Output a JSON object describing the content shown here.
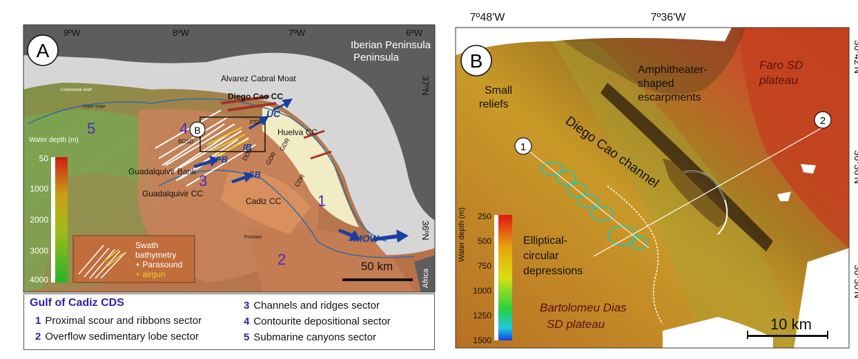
{
  "panel_a": {
    "letter": "A",
    "longitude_labels": [
      "9ºW",
      "8ºW",
      "7ºW",
      "6ºW"
    ],
    "latitude_labels": [
      "37ºN",
      "36ºN"
    ],
    "region_label": "Iberian Peninsula",
    "africa_label": "Africa",
    "features": {
      "alvarez_cabral_moat": "Alvarez Cabral Moat",
      "diego_cao_cc": "Diego Cao CC",
      "huelva_cc": "Huelva CC",
      "guadalquivir_bank": "Guadalquivir Bank",
      "guadalquivir_cc": "Guadalquivir CC",
      "cadiz_cc": "Cadiz CC",
      "continental_shelf": "Continental shelf",
      "upper_slope": "Upper slope",
      "furrows": "Furrows",
      "bdsd": "BDSD",
      "fsd": "FSD",
      "ddr": "DDR",
      "gdr1": "GDR",
      "gdr2": "GDR",
      "cdr": "CDR"
    },
    "currents": [
      "UC",
      "IB",
      "PB",
      "SB",
      "MOW"
    ],
    "sector_numbers": [
      "1",
      "2",
      "3",
      "4",
      "5"
    ],
    "inset_marker": "B",
    "depth_scale": {
      "title": "Water depth (m)",
      "ticks": [
        "50",
        "1000",
        "2000",
        "3000",
        "4000"
      ]
    },
    "swath_legend": {
      "line1": "Swath",
      "line2": "bathymetry",
      "line3": "+ Parasound",
      "line4": "+ airgun"
    },
    "scale_bar": "50 km",
    "legend": {
      "title": "Gulf of Cadiz CDS",
      "items": [
        {
          "num": "1",
          "text": "Proximal scour  and ribbons sector"
        },
        {
          "num": "2",
          "text": "Overflow sedimentary lobe sector"
        },
        {
          "num": "3",
          "text": "Channels and ridges sector"
        },
        {
          "num": "4",
          "text": "Contourite depositional sector"
        },
        {
          "num": "5",
          "text": "Submarine canyons sector"
        }
      ]
    }
  },
  "panel_b": {
    "letter": "B",
    "longitude_labels": [
      "7º48'W",
      "7º36'W"
    ],
    "latitude_labels": [
      "36º42'N",
      "36º36'N",
      "36º30'N"
    ],
    "features": {
      "small_reliefs": "Small reliefs",
      "diego_cao_channel": "Diego Cao channel",
      "amphitheater": "Amphitheater-shaped escarpments",
      "faro_plateau_1": "Faro SD",
      "faro_plateau_2": "plateau",
      "elliptical_1": "Elliptical-",
      "elliptical_2": "circular",
      "elliptical_3": "depressions",
      "bartolomeu_1": "Bartolomeu Dias",
      "bartolomeu_2": "SD plateau"
    },
    "profile_markers": [
      "1",
      "2"
    ],
    "depth_scale": {
      "title": "Water depth (m)",
      "ticks": [
        "250",
        "500",
        "750",
        "1000",
        "1250",
        "1500"
      ]
    },
    "scale_bar": "10 km"
  },
  "colors": {
    "land": "#5d5d5d",
    "shelf": "#d6d6d6",
    "sector_orange": "#d9905e",
    "current_blue": "#1a3fa0",
    "sector_number": "#4a2bb8",
    "legend_title": "#2f1fa8"
  }
}
